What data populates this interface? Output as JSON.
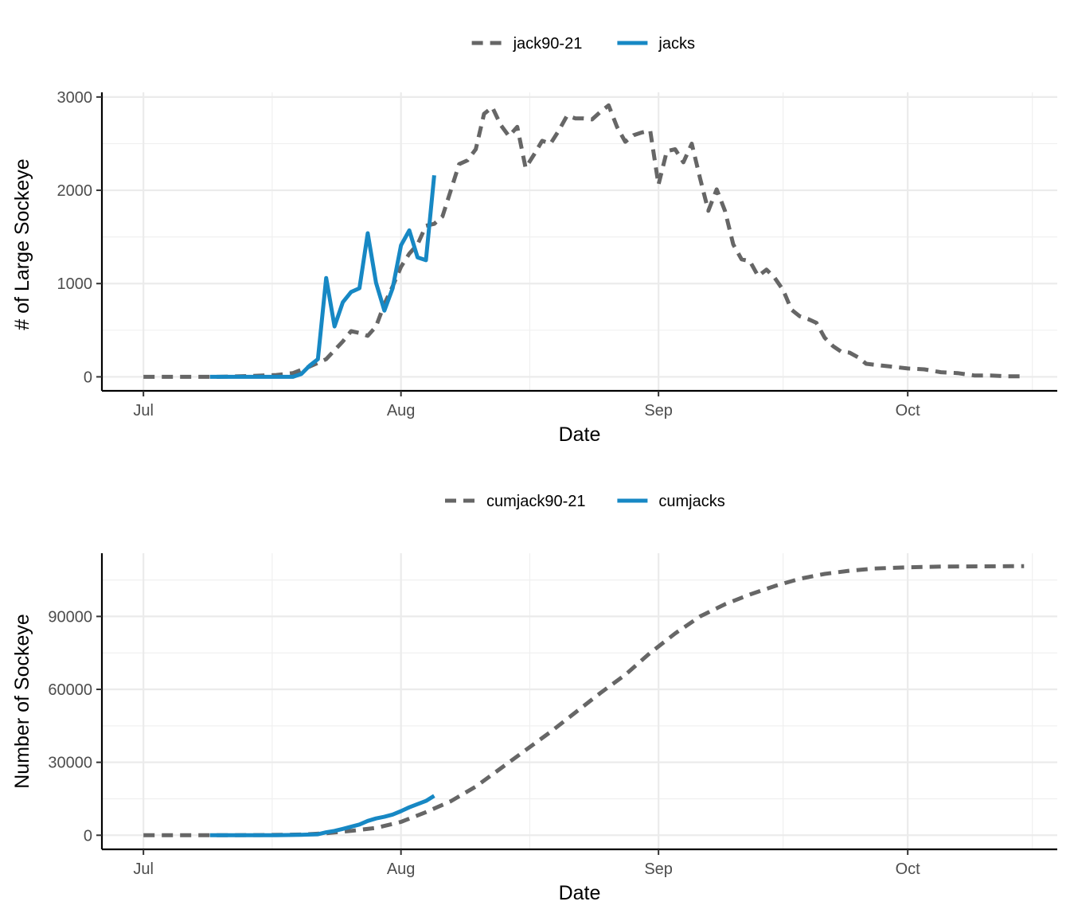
{
  "chart_data": [
    {
      "type": "line",
      "xlabel": "Date",
      "ylabel": "# of Large Sockeye",
      "ylim": [
        -150,
        3050
      ],
      "xlim": [
        "2024-06-26",
        "2024-10-19"
      ],
      "x_ticks": [
        {
          "date": "2024-07-01",
          "label": "Jul"
        },
        {
          "date": "2024-08-01",
          "label": "Aug"
        },
        {
          "date": "2024-09-01",
          "label": "Sep"
        },
        {
          "date": "2024-10-01",
          "label": "Oct"
        }
      ],
      "y_ticks": [
        0,
        1000,
        2000,
        3000
      ],
      "grid": true,
      "legend_position": "top",
      "series": [
        {
          "name": "jack90-21",
          "style": "dashed",
          "color": "#666666",
          "points": [
            [
              "2024-07-01",
              0
            ],
            [
              "2024-07-05",
              0
            ],
            [
              "2024-07-10",
              0
            ],
            [
              "2024-07-14",
              10
            ],
            [
              "2024-07-17",
              20
            ],
            [
              "2024-07-19",
              40
            ],
            [
              "2024-07-21",
              110
            ],
            [
              "2024-07-23",
              190
            ],
            [
              "2024-07-25",
              380
            ],
            [
              "2024-07-26",
              490
            ],
            [
              "2024-07-27",
              470
            ],
            [
              "2024-07-28",
              440
            ],
            [
              "2024-07-29",
              540
            ],
            [
              "2024-07-30",
              780
            ],
            [
              "2024-07-31",
              970
            ],
            [
              "2024-08-01",
              1180
            ],
            [
              "2024-08-02",
              1320
            ],
            [
              "2024-08-03",
              1420
            ],
            [
              "2024-08-04",
              1620
            ],
            [
              "2024-08-05",
              1640
            ],
            [
              "2024-08-06",
              1720
            ],
            [
              "2024-08-07",
              2000
            ],
            [
              "2024-08-08",
              2280
            ],
            [
              "2024-08-09",
              2320
            ],
            [
              "2024-08-10",
              2440
            ],
            [
              "2024-08-11",
              2820
            ],
            [
              "2024-08-12",
              2890
            ],
            [
              "2024-08-13",
              2700
            ],
            [
              "2024-08-14",
              2580
            ],
            [
              "2024-08-15",
              2680
            ],
            [
              "2024-08-16",
              2240
            ],
            [
              "2024-08-17",
              2380
            ],
            [
              "2024-08-18",
              2530
            ],
            [
              "2024-08-19",
              2500
            ],
            [
              "2024-08-20",
              2640
            ],
            [
              "2024-08-21",
              2800
            ],
            [
              "2024-08-22",
              2770
            ],
            [
              "2024-08-23",
              2770
            ],
            [
              "2024-08-24",
              2760
            ],
            [
              "2024-08-25",
              2840
            ],
            [
              "2024-08-26",
              2910
            ],
            [
              "2024-08-27",
              2680
            ],
            [
              "2024-08-28",
              2520
            ],
            [
              "2024-08-29",
              2590
            ],
            [
              "2024-08-30",
              2620
            ],
            [
              "2024-08-31",
              2640
            ],
            [
              "2024-09-01",
              2060
            ],
            [
              "2024-09-02",
              2420
            ],
            [
              "2024-09-03",
              2440
            ],
            [
              "2024-09-04",
              2300
            ],
            [
              "2024-09-05",
              2500
            ],
            [
              "2024-09-06",
              2130
            ],
            [
              "2024-09-07",
              1780
            ],
            [
              "2024-09-08",
              2010
            ],
            [
              "2024-09-09",
              1780
            ],
            [
              "2024-09-10",
              1420
            ],
            [
              "2024-09-11",
              1260
            ],
            [
              "2024-09-12",
              1240
            ],
            [
              "2024-09-13",
              1080
            ],
            [
              "2024-09-14",
              1150
            ],
            [
              "2024-09-15",
              1060
            ],
            [
              "2024-09-16",
              930
            ],
            [
              "2024-09-17",
              720
            ],
            [
              "2024-09-18",
              650
            ],
            [
              "2024-09-19",
              620
            ],
            [
              "2024-09-20",
              580
            ],
            [
              "2024-09-21",
              420
            ],
            [
              "2024-09-22",
              330
            ],
            [
              "2024-09-23",
              270
            ],
            [
              "2024-09-24",
              260
            ],
            [
              "2024-09-25",
              210
            ],
            [
              "2024-09-26",
              140
            ],
            [
              "2024-09-27",
              130
            ],
            [
              "2024-09-28",
              120
            ],
            [
              "2024-09-29",
              110
            ],
            [
              "2024-09-30",
              100
            ],
            [
              "2024-10-01",
              90
            ],
            [
              "2024-10-03",
              80
            ],
            [
              "2024-10-05",
              50
            ],
            [
              "2024-10-07",
              40
            ],
            [
              "2024-10-09",
              15
            ],
            [
              "2024-10-11",
              15
            ],
            [
              "2024-10-13",
              5
            ],
            [
              "2024-10-15",
              5
            ]
          ]
        },
        {
          "name": "jacks",
          "style": "solid",
          "color": "#1788c4",
          "points": [
            [
              "2024-07-09",
              0
            ],
            [
              "2024-07-11",
              0
            ],
            [
              "2024-07-13",
              0
            ],
            [
              "2024-07-15",
              0
            ],
            [
              "2024-07-17",
              0
            ],
            [
              "2024-07-19",
              0
            ],
            [
              "2024-07-20",
              30
            ],
            [
              "2024-07-21",
              120
            ],
            [
              "2024-07-22",
              190
            ],
            [
              "2024-07-23",
              1060
            ],
            [
              "2024-07-24",
              540
            ],
            [
              "2024-07-25",
              800
            ],
            [
              "2024-07-26",
              910
            ],
            [
              "2024-07-27",
              950
            ],
            [
              "2024-07-28",
              1540
            ],
            [
              "2024-07-29",
              1010
            ],
            [
              "2024-07-30",
              710
            ],
            [
              "2024-07-31",
              950
            ],
            [
              "2024-08-01",
              1410
            ],
            [
              "2024-08-02",
              1570
            ],
            [
              "2024-08-03",
              1280
            ],
            [
              "2024-08-04",
              1250
            ],
            [
              "2024-08-05",
              2160
            ]
          ]
        }
      ]
    },
    {
      "type": "line",
      "xlabel": "Date",
      "ylabel": "Number of Sockeye",
      "ylim": [
        -5800,
        116000
      ],
      "xlim": [
        "2024-06-26",
        "2024-10-19"
      ],
      "x_ticks": [
        {
          "date": "2024-07-01",
          "label": "Jul"
        },
        {
          "date": "2024-08-01",
          "label": "Aug"
        },
        {
          "date": "2024-09-01",
          "label": "Sep"
        },
        {
          "date": "2024-10-01",
          "label": "Oct"
        }
      ],
      "y_ticks": [
        0,
        30000,
        60000,
        90000
      ],
      "grid": true,
      "legend_position": "top",
      "series": [
        {
          "name": "cumjack90-21",
          "style": "dashed",
          "color": "#666666",
          "points": [
            [
              "2024-07-01",
              0
            ],
            [
              "2024-07-10",
              0
            ],
            [
              "2024-07-15",
              50
            ],
            [
              "2024-07-20",
              300
            ],
            [
              "2024-07-23",
              800
            ],
            [
              "2024-07-26",
              1800
            ],
            [
              "2024-07-29",
              3000
            ],
            [
              "2024-08-01",
              5500
            ],
            [
              "2024-08-04",
              9500
            ],
            [
              "2024-08-07",
              14000
            ],
            [
              "2024-08-10",
              20000
            ],
            [
              "2024-08-13",
              27500
            ],
            [
              "2024-08-16",
              35000
            ],
            [
              "2024-08-19",
              42500
            ],
            [
              "2024-08-22",
              50500
            ],
            [
              "2024-08-25",
              58500
            ],
            [
              "2024-08-28",
              66000
            ],
            [
              "2024-08-31",
              75000
            ],
            [
              "2024-09-03",
              83000
            ],
            [
              "2024-09-06",
              90000
            ],
            [
              "2024-09-09",
              95000
            ],
            [
              "2024-09-12",
              99000
            ],
            [
              "2024-09-15",
              102500
            ],
            [
              "2024-09-18",
              105500
            ],
            [
              "2024-09-21",
              107500
            ],
            [
              "2024-09-24",
              108800
            ],
            [
              "2024-09-27",
              109700
            ],
            [
              "2024-10-01",
              110200
            ],
            [
              "2024-10-05",
              110500
            ],
            [
              "2024-10-10",
              110600
            ],
            [
              "2024-10-15",
              110700
            ]
          ]
        },
        {
          "name": "cumjacks",
          "style": "solid",
          "color": "#1788c4",
          "points": [
            [
              "2024-07-09",
              0
            ],
            [
              "2024-07-13",
              0
            ],
            [
              "2024-07-17",
              0
            ],
            [
              "2024-07-20",
              200
            ],
            [
              "2024-07-22",
              400
            ],
            [
              "2024-07-23",
              1200
            ],
            [
              "2024-07-24",
              1800
            ],
            [
              "2024-07-25",
              2600
            ],
            [
              "2024-07-26",
              3500
            ],
            [
              "2024-07-27",
              4400
            ],
            [
              "2024-07-28",
              5900
            ],
            [
              "2024-07-29",
              6900
            ],
            [
              "2024-07-30",
              7600
            ],
            [
              "2024-07-31",
              8500
            ],
            [
              "2024-08-01",
              9900
            ],
            [
              "2024-08-02",
              11500
            ],
            [
              "2024-08-03",
              12800
            ],
            [
              "2024-08-04",
              14100
            ],
            [
              "2024-08-05",
              16200
            ]
          ]
        }
      ]
    }
  ]
}
